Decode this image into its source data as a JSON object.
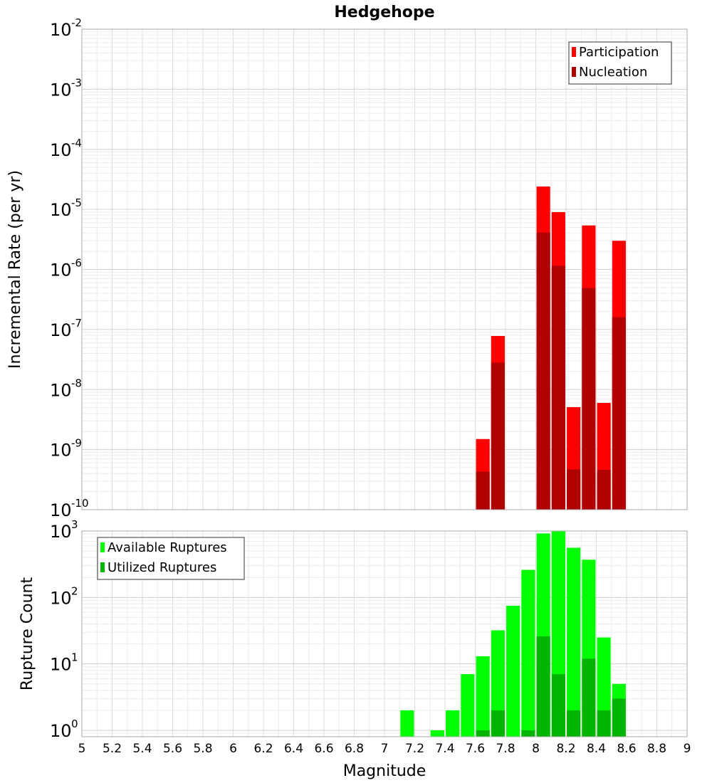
{
  "chart_data": [
    {
      "id": "rate",
      "type": "bar",
      "title": "Hedgehope",
      "ylabel": "Incremental Rate (per yr)",
      "xlabel": "",
      "xlim": [
        5,
        9
      ],
      "ylim": [
        1e-10,
        0.01
      ],
      "yscale": "log",
      "grid": true,
      "x_ticks": [
        "5",
        "5.2",
        "5.4",
        "5.6",
        "5.8",
        "6",
        "6.2",
        "6.4",
        "6.6",
        "6.8",
        "7",
        "7.2",
        "7.4",
        "7.6",
        "7.8",
        "8",
        "8.2",
        "8.4",
        "8.6",
        "8.8",
        "9"
      ],
      "y_ticks": [
        {
          "value": 0.01,
          "base": "10",
          "exp": "-2"
        },
        {
          "value": 0.001,
          "base": "10",
          "exp": "-3"
        },
        {
          "value": 0.0001,
          "base": "10",
          "exp": "-4"
        },
        {
          "value": 1e-05,
          "base": "10",
          "exp": "-5"
        },
        {
          "value": 1e-06,
          "base": "10",
          "exp": "-6"
        },
        {
          "value": 1e-07,
          "base": "10",
          "exp": "-7"
        },
        {
          "value": 1e-08,
          "base": "10",
          "exp": "-8"
        },
        {
          "value": 1e-09,
          "base": "10",
          "exp": "-9"
        },
        {
          "value": 1e-10,
          "base": "10",
          "exp": "-10"
        }
      ],
      "legend": {
        "placement": "top-right"
      },
      "series": [
        {
          "name": "Participation",
          "color": "#ff0000",
          "x": [
            7.65,
            7.75,
            8.05,
            8.15,
            8.25,
            8.35,
            8.45,
            8.55
          ],
          "values": [
            1.5e-09,
            7.8e-08,
            2.4e-05,
            9e-06,
            5.1e-09,
            5.4e-06,
            6e-09,
            3e-06
          ]
        },
        {
          "name": "Nucleation",
          "color": "#b00000",
          "x": [
            7.65,
            7.75,
            8.05,
            8.15,
            8.25,
            8.35,
            8.45,
            8.55
          ],
          "values": [
            4.3e-10,
            2.8e-08,
            4.1e-06,
            1.15e-06,
            4.7e-10,
            4.9e-07,
            4.6e-10,
            1.6e-07
          ]
        }
      ]
    },
    {
      "id": "count",
      "type": "bar",
      "title": "",
      "ylabel": "Rupture Count",
      "xlabel": "Magnitude",
      "xlim": [
        5,
        9
      ],
      "ylim": [
        0.8,
        1000
      ],
      "yscale": "log",
      "grid": true,
      "x_ticks": [
        "5",
        "5.2",
        "5.4",
        "5.6",
        "5.8",
        "6",
        "6.2",
        "6.4",
        "6.6",
        "6.8",
        "7",
        "7.2",
        "7.4",
        "7.6",
        "7.8",
        "8",
        "8.2",
        "8.4",
        "8.6",
        "8.8",
        "9"
      ],
      "y_ticks": [
        {
          "value": 1000,
          "base": "10",
          "exp": "3"
        },
        {
          "value": 100,
          "base": "10",
          "exp": "2"
        },
        {
          "value": 10,
          "base": "10",
          "exp": "1"
        },
        {
          "value": 1,
          "base": "10",
          "exp": "0"
        }
      ],
      "legend": {
        "placement": "top-left"
      },
      "series": [
        {
          "name": "Available Ruptures",
          "color": "#00ff00",
          "x": [
            7.15,
            7.35,
            7.45,
            7.55,
            7.65,
            7.75,
            7.85,
            7.95,
            8.05,
            8.15,
            8.25,
            8.35,
            8.45,
            8.55
          ],
          "values": [
            2,
            1,
            2,
            7,
            13,
            32,
            75,
            260,
            920,
            1000,
            560,
            370,
            25,
            5
          ]
        },
        {
          "name": "Utilized Ruptures",
          "color": "#00b400",
          "x": [
            7.65,
            7.75,
            7.95,
            8.05,
            8.15,
            8.25,
            8.35,
            8.45,
            8.55
          ],
          "values": [
            1,
            2,
            1,
            26,
            7,
            2,
            12,
            2,
            3
          ]
        }
      ]
    }
  ]
}
